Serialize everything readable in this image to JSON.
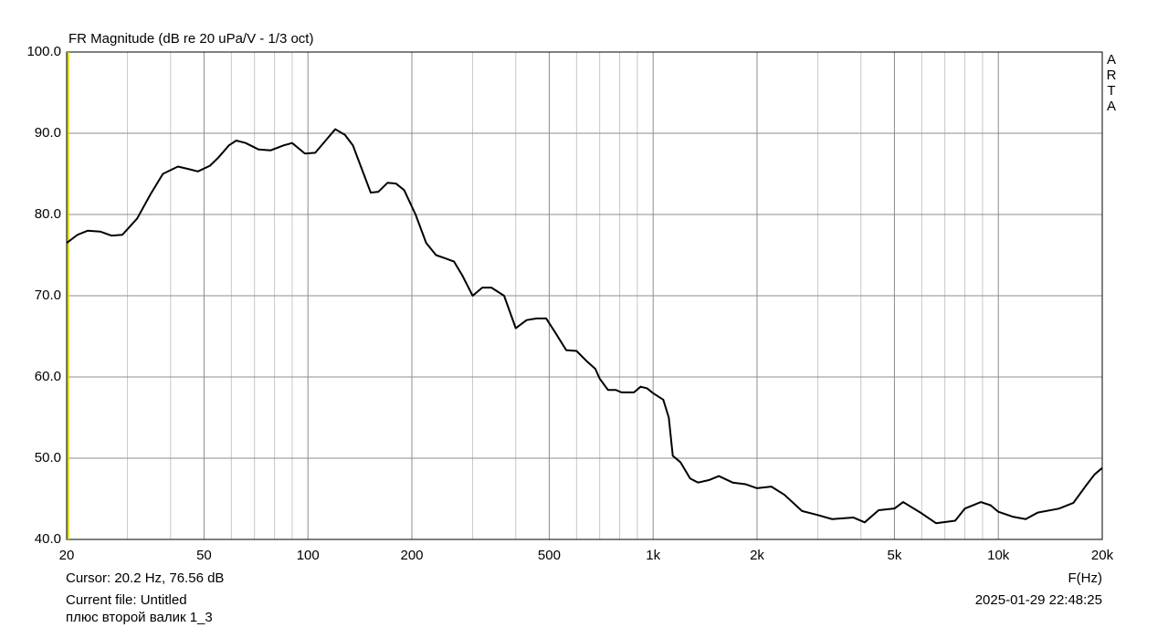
{
  "chart_data": {
    "type": "line",
    "title": "FR Magnitude (dB re 20 uPa/V - 1/3 oct)",
    "watermark": "ARTA",
    "xlabel": "F(Hz)",
    "cursor": {
      "x": 20.2,
      "label": "Cursor: 20.2 Hz, 76.56 dB",
      "color": "#d8d800"
    },
    "file_info": [
      "Current file: Untitled",
      "плюс второй валик 1_3"
    ],
    "timestamp": "2025-01-29  22:48:25",
    "log_x": true,
    "grid": true,
    "color": "#000000",
    "xlim": [
      20,
      20000
    ],
    "ylim": [
      40,
      100
    ],
    "xticks": [
      20,
      50,
      100,
      200,
      500,
      {
        "value": 1000,
        "label": "1k"
      },
      {
        "value": 2000,
        "label": "2k"
      },
      {
        "value": 5000,
        "label": "5k"
      },
      {
        "value": 10000,
        "label": "10k"
      },
      {
        "value": 20000,
        "label": "20k"
      }
    ],
    "xminor": [
      30,
      40,
      60,
      70,
      80,
      90,
      300,
      400,
      600,
      700,
      800,
      900,
      3000,
      4000,
      6000,
      7000,
      8000,
      9000
    ],
    "yticks": [
      {
        "value": 40,
        "label": "40.0"
      },
      {
        "value": 50,
        "label": "50.0"
      },
      {
        "value": 60,
        "label": "60.0"
      },
      {
        "value": 70,
        "label": "70.0"
      },
      {
        "value": 80,
        "label": "80.0"
      },
      {
        "value": 90,
        "label": "90.0"
      },
      {
        "value": 100,
        "label": "100.0"
      }
    ],
    "x": [
      20,
      21.5,
      23,
      25,
      27,
      29,
      32,
      35,
      38,
      42,
      45,
      48,
      52,
      55,
      59,
      62,
      66,
      72,
      78,
      85,
      90,
      98,
      105,
      112,
      120,
      128,
      135,
      145,
      152,
      160,
      170,
      180,
      190,
      205,
      220,
      235,
      250,
      265,
      280,
      300,
      320,
      340,
      370,
      400,
      430,
      460,
      490,
      520,
      560,
      600,
      640,
      680,
      700,
      740,
      780,
      810,
      880,
      920,
      960,
      1000,
      1070,
      1110,
      1140,
      1200,
      1280,
      1350,
      1450,
      1550,
      1700,
      1850,
      2000,
      2200,
      2400,
      2700,
      3000,
      3300,
      3800,
      4100,
      4500,
      5000,
      5300,
      6000,
      6600,
      7500,
      8000,
      8900,
      9500,
      10000,
      11000,
      12000,
      13000,
      15000,
      16500,
      18000,
      19000,
      20000
    ],
    "values": [
      76.5,
      77.5,
      78.0,
      77.9,
      77.4,
      77.5,
      79.5,
      82.5,
      85.0,
      85.9,
      85.6,
      85.3,
      86.0,
      87.0,
      88.5,
      89.1,
      88.8,
      88.0,
      87.9,
      88.5,
      88.8,
      87.5,
      87.6,
      89.0,
      90.5,
      89.8,
      88.5,
      85.0,
      82.7,
      82.8,
      83.9,
      83.8,
      83.0,
      80.0,
      76.5,
      75.0,
      74.6,
      74.2,
      72.5,
      70.0,
      71.0,
      71.0,
      70.0,
      66.0,
      67.0,
      67.2,
      67.2,
      65.5,
      63.3,
      63.2,
      62.0,
      61.0,
      59.8,
      58.4,
      58.4,
      58.1,
      58.1,
      58.8,
      58.6,
      58.0,
      57.2,
      55.0,
      50.3,
      49.5,
      47.5,
      47.0,
      47.3,
      47.8,
      47.0,
      46.8,
      46.3,
      46.5,
      45.5,
      43.5,
      43.0,
      42.5,
      42.7,
      42.1,
      43.6,
      43.8,
      44.6,
      43.2,
      42.0,
      42.3,
      43.8,
      44.6,
      44.2,
      43.4,
      42.8,
      42.5,
      43.3,
      43.8,
      44.5,
      46.7,
      48.0,
      48.8
    ]
  }
}
